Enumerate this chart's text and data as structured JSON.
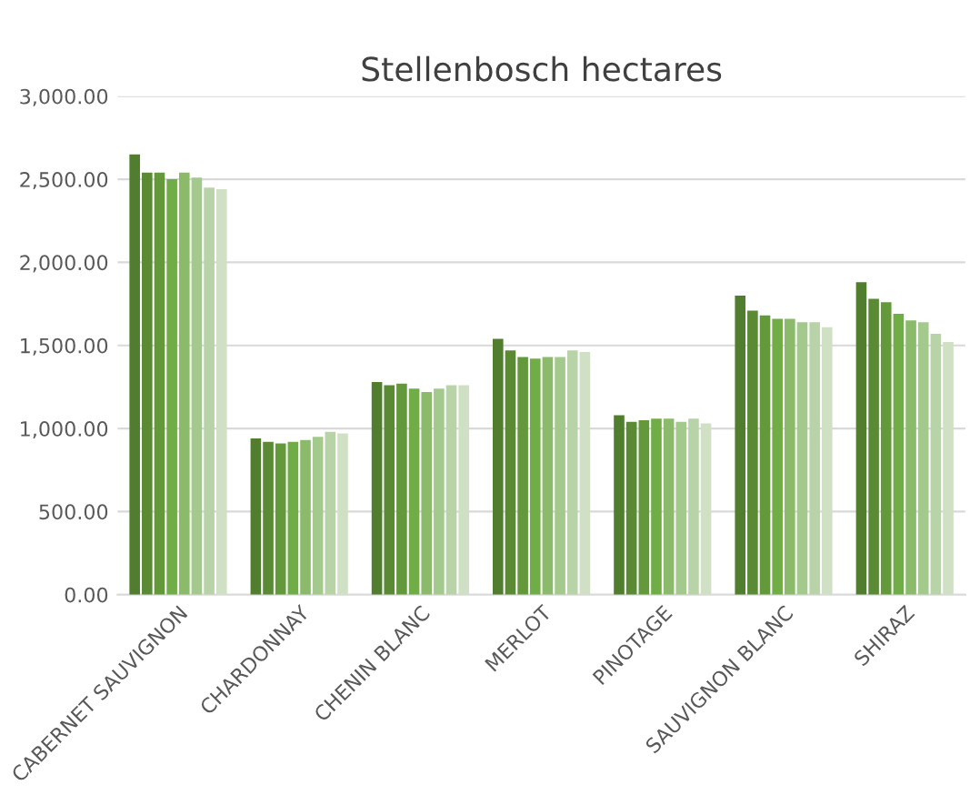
{
  "chart_data": {
    "type": "bar",
    "title": "Stellenbosch hectares",
    "categories": [
      "CABERNET SAUVIGNON",
      "CHARDONNAY",
      "CHENIN BLANC",
      "MERLOT",
      "PINOTAGE",
      "SAUVIGNON BLANC",
      "SHIRAZ"
    ],
    "series": [
      {
        "color": "#507d2e",
        "values": [
          2650,
          940,
          1280,
          1540,
          1080,
          1800,
          1880
        ]
      },
      {
        "color": "#5a8a34",
        "values": [
          2540,
          920,
          1260,
          1470,
          1040,
          1710,
          1780
        ]
      },
      {
        "color": "#63993a",
        "values": [
          2540,
          910,
          1270,
          1430,
          1050,
          1680,
          1760
        ]
      },
      {
        "color": "#70ad47",
        "values": [
          2500,
          920,
          1240,
          1420,
          1060,
          1660,
          1690
        ]
      },
      {
        "color": "#8bbb6a",
        "values": [
          2540,
          930,
          1220,
          1430,
          1060,
          1660,
          1650
        ]
      },
      {
        "color": "#a3c98d",
        "values": [
          2510,
          950,
          1240,
          1430,
          1040,
          1640,
          1640
        ]
      },
      {
        "color": "#b9d3a8",
        "values": [
          2450,
          980,
          1260,
          1470,
          1060,
          1640,
          1570
        ]
      },
      {
        "color": "#cfe0c4",
        "values": [
          2440,
          970,
          1260,
          1460,
          1030,
          1610,
          1520
        ]
      }
    ],
    "ylim": [
      0,
      3000
    ],
    "yticks": [
      {
        "value": 0,
        "label": "0.00"
      },
      {
        "value": 500,
        "label": "500.00"
      },
      {
        "value": 1000,
        "label": "1,000.00"
      },
      {
        "value": 1500,
        "label": "1,500.00"
      },
      {
        "value": 2000,
        "label": "2,000.00"
      },
      {
        "value": 2500,
        "label": "2,500.00"
      },
      {
        "value": 3000,
        "label": "3,000.00"
      }
    ],
    "grid": "y",
    "legend": false
  }
}
